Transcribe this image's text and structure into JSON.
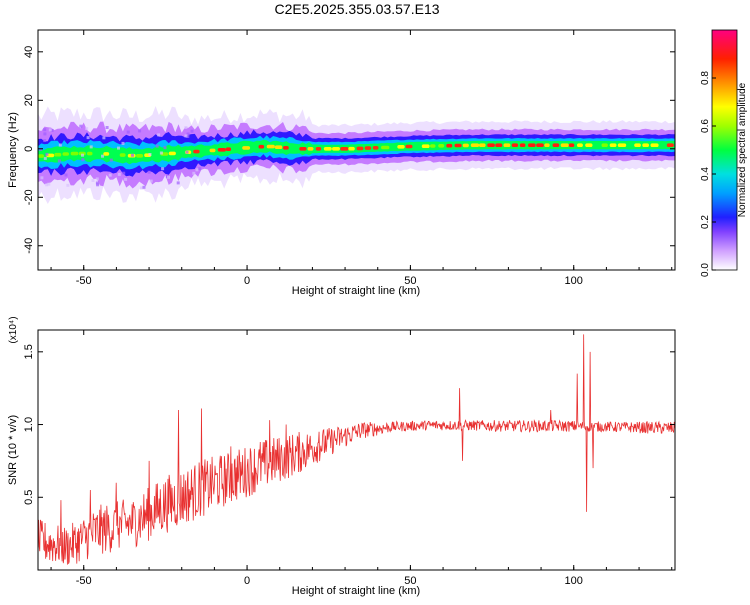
{
  "title": "C2E5.2025.355.03.57.E13",
  "chart_data": [
    {
      "type": "heatmap",
      "xlabel": "Height of straight line (km)",
      "ylabel": "Frequency (Hz)",
      "xlim": [
        -64,
        131
      ],
      "ylim": [
        -50,
        49
      ],
      "x_ticks": [
        -50,
        0,
        50,
        100
      ],
      "y_ticks": [
        -40,
        -20,
        0,
        20,
        40
      ],
      "band_center_hz": [
        [
          -64,
          -3
        ],
        [
          -55,
          -2
        ],
        [
          -45,
          -2
        ],
        [
          -35,
          -3
        ],
        [
          -25,
          -2
        ],
        [
          -15,
          -1
        ],
        [
          -5,
          0
        ],
        [
          5,
          1
        ],
        [
          15,
          0
        ],
        [
          30,
          0
        ],
        [
          50,
          1
        ],
        [
          70,
          1.5
        ],
        [
          90,
          1.5
        ],
        [
          110,
          1.5
        ],
        [
          131,
          1.5
        ]
      ],
      "colorbar": {
        "label": "Normalized spectral amplitude",
        "range": [
          0.0,
          1.0
        ],
        "ticks": [
          "0.0",
          "0.2",
          "0.4",
          "0.6",
          "0.8"
        ],
        "colors": [
          "#ffffff",
          "#c060ff",
          "#4010ff",
          "#00c8ff",
          "#00ff60",
          "#ffff00",
          "#ff8000",
          "#ff0000",
          "#ff0080"
        ]
      }
    },
    {
      "type": "line",
      "xlabel": "Height of straight line (km)",
      "ylabel": "SNR (10 * v/v)",
      "scale_label": "(x10⁴)",
      "xlim": [
        -64,
        131
      ],
      "ylim": [
        0.0,
        1.65
      ],
      "x_ticks": [
        -50,
        0,
        50,
        100
      ],
      "y_ticks": [
        "0.5",
        "1.0",
        "1.5"
      ],
      "color": "#e83030",
      "envelope": [
        [
          -64,
          0.05,
          0.35
        ],
        [
          -55,
          0.02,
          0.3
        ],
        [
          -45,
          0.1,
          0.45
        ],
        [
          -35,
          0.15,
          0.5
        ],
        [
          -25,
          0.25,
          0.65
        ],
        [
          -15,
          0.35,
          0.75
        ],
        [
          -5,
          0.45,
          0.82
        ],
        [
          5,
          0.55,
          0.9
        ],
        [
          15,
          0.65,
          0.95
        ],
        [
          25,
          0.78,
          0.98
        ],
        [
          35,
          0.9,
          1.02
        ],
        [
          45,
          0.95,
          1.02
        ],
        [
          55,
          0.96,
          1.03
        ],
        [
          65,
          0.96,
          1.03
        ],
        [
          80,
          0.95,
          1.03
        ],
        [
          95,
          0.95,
          1.03
        ],
        [
          110,
          0.95,
          1.02
        ],
        [
          131,
          0.93,
          1.02
        ]
      ],
      "spikes": [
        [
          -57,
          0.48
        ],
        [
          -48,
          0.55
        ],
        [
          -40,
          0.6
        ],
        [
          -30,
          0.75
        ],
        [
          -21,
          1.1
        ],
        [
          -14,
          1.11
        ],
        [
          -5,
          0.85
        ],
        [
          4,
          0.88
        ],
        [
          7,
          1.03
        ],
        [
          12,
          1.0
        ],
        [
          22,
          0.95
        ],
        [
          65,
          1.25
        ],
        [
          66,
          0.75
        ],
        [
          93,
          1.1
        ],
        [
          101,
          1.35
        ],
        [
          103,
          1.62
        ],
        [
          104,
          0.4
        ],
        [
          105,
          1.5
        ],
        [
          106,
          0.7
        ]
      ]
    }
  ]
}
